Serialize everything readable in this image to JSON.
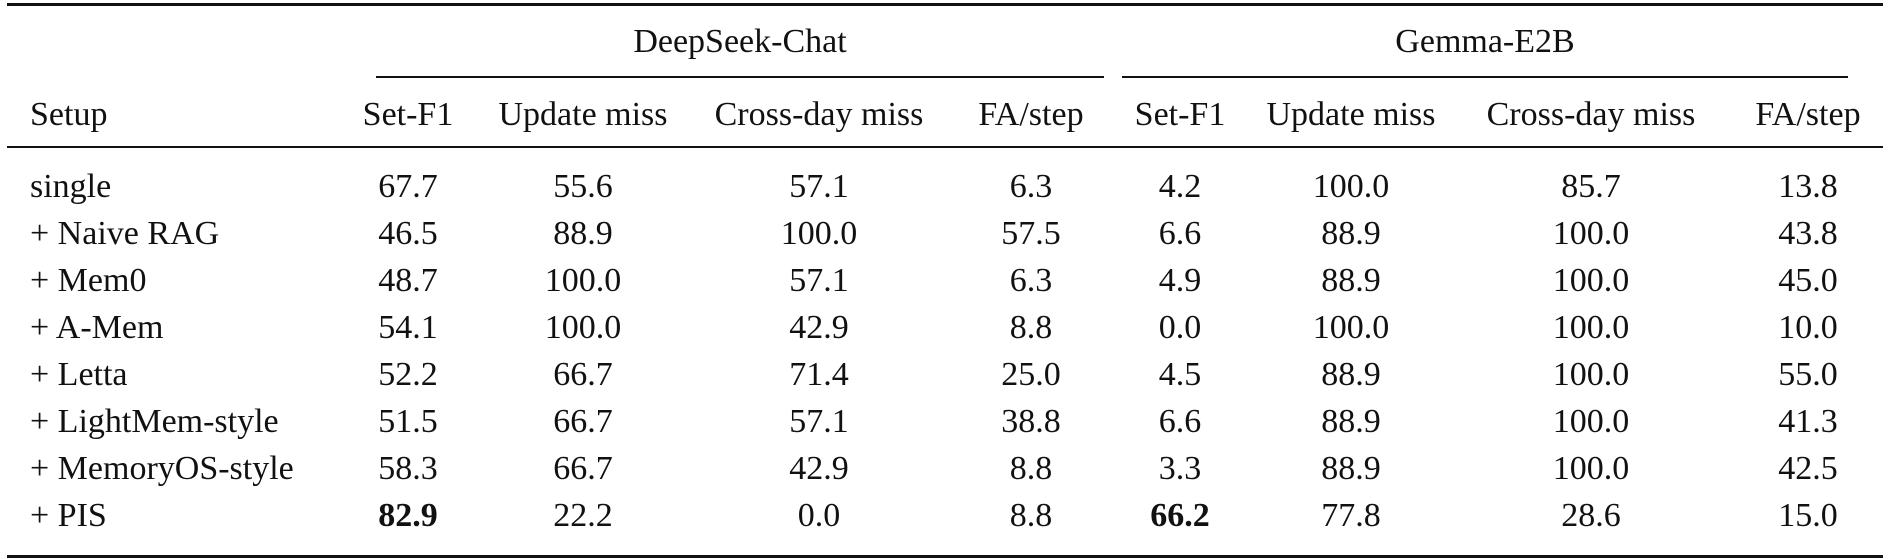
{
  "table": {
    "groups": [
      "DeepSeek-Chat",
      "Gemma-E2B"
    ],
    "columns": [
      "Setup",
      "Set-F1",
      "Update miss",
      "Cross-day miss",
      "FA/step",
      "Set-F1",
      "Update miss",
      "Cross-day miss",
      "FA/step"
    ],
    "rows": [
      {
        "setup": "single",
        "values": [
          "67.7",
          "55.6",
          "57.1",
          "6.3",
          "4.2",
          "100.0",
          "85.7",
          "13.8"
        ]
      },
      {
        "setup": "+ Naive RAG",
        "values": [
          "46.5",
          "88.9",
          "100.0",
          "57.5",
          "6.6",
          "88.9",
          "100.0",
          "43.8"
        ]
      },
      {
        "setup": "+ Mem0",
        "values": [
          "48.7",
          "100.0",
          "57.1",
          "6.3",
          "4.9",
          "88.9",
          "100.0",
          "45.0"
        ]
      },
      {
        "setup": "+ A-Mem",
        "values": [
          "54.1",
          "100.0",
          "42.9",
          "8.8",
          "0.0",
          "100.0",
          "100.0",
          "10.0"
        ]
      },
      {
        "setup": "+ Letta",
        "values": [
          "52.2",
          "66.7",
          "71.4",
          "25.0",
          "4.5",
          "88.9",
          "100.0",
          "55.0"
        ]
      },
      {
        "setup": "+ LightMem-style",
        "values": [
          "51.5",
          "66.7",
          "57.1",
          "38.8",
          "6.6",
          "88.9",
          "100.0",
          "41.3"
        ]
      },
      {
        "setup": "+ MemoryOS-style",
        "values": [
          "58.3",
          "66.7",
          "42.9",
          "8.8",
          "3.3",
          "88.9",
          "100.0",
          "42.5"
        ]
      },
      {
        "setup": "+ PIS",
        "values": [
          "82.9",
          "22.2",
          "0.0",
          "8.8",
          "66.2",
          "77.8",
          "28.6",
          "15.0"
        ]
      }
    ]
  }
}
